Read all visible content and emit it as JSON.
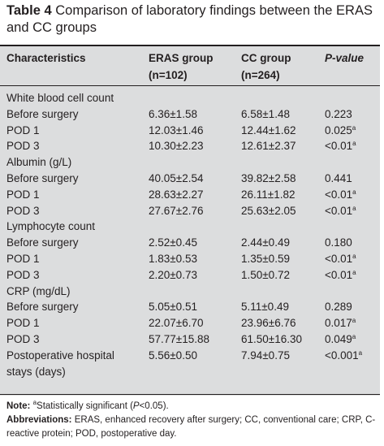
{
  "caption": {
    "label": "Table 4",
    "text": "Comparison of laboratory findings between the ERAS and CC groups"
  },
  "header": {
    "col1": "Characteristics",
    "col2_line1": "ERAS group",
    "col2_line2": "(n=102)",
    "col3_line1": "CC group",
    "col3_line2": "(n=264)",
    "col4": "P-value"
  },
  "rows": [
    {
      "label": "White blood cell count",
      "eras": "",
      "cc": "",
      "p": "",
      "sig": false
    },
    {
      "label": "Before surgery",
      "eras": "6.36±1.58",
      "cc": "6.58±1.48",
      "p": "0.223",
      "sig": false
    },
    {
      "label": "POD 1",
      "eras": "12.03±1.46",
      "cc": "12.44±1.62",
      "p": "0.025",
      "sig": true
    },
    {
      "label": "POD 3",
      "eras": "10.30±2.23",
      "cc": "12.61±2.37",
      "p": "<0.01",
      "sig": true
    },
    {
      "label": "Albumin (g/L)",
      "eras": "",
      "cc": "",
      "p": "",
      "sig": false
    },
    {
      "label": "Before surgery",
      "eras": "40.05±2.54",
      "cc": "39.82±2.58",
      "p": "0.441",
      "sig": false
    },
    {
      "label": "POD 1",
      "eras": "28.63±2.27",
      "cc": "26.11±1.82",
      "p": "<0.01",
      "sig": true
    },
    {
      "label": "POD 3",
      "eras": "27.67±2.76",
      "cc": "25.63±2.05",
      "p": "<0.01",
      "sig": true
    },
    {
      "label": "Lymphocyte count",
      "eras": "",
      "cc": "",
      "p": "",
      "sig": false
    },
    {
      "label": "Before surgery",
      "eras": "2.52±0.45",
      "cc": "2.44±0.49",
      "p": "0.180",
      "sig": false
    },
    {
      "label": "POD 1",
      "eras": "1.83±0.53",
      "cc": "1.35±0.59",
      "p": "<0.01",
      "sig": true
    },
    {
      "label": "POD 3",
      "eras": "2.20±0.73",
      "cc": "1.50±0.72",
      "p": "<0.01",
      "sig": true
    },
    {
      "label": "CRP (mg/dL)",
      "eras": "",
      "cc": "",
      "p": "",
      "sig": false
    },
    {
      "label": "Before surgery",
      "eras": "5.05±0.51",
      "cc": "5.11±0.49",
      "p": "0.289",
      "sig": false
    },
    {
      "label": "POD 1",
      "eras": "22.07±6.70",
      "cc": "23.96±6.76",
      "p": "0.017",
      "sig": true
    },
    {
      "label": "POD 3",
      "eras": "57.77±15.88",
      "cc": "61.50±16.30",
      "p": "0.049",
      "sig": true
    },
    {
      "label": "Postoperative hospital",
      "eras": "5.56±0.50",
      "cc": "7.94±0.75",
      "p": "<0.001",
      "sig": true
    },
    {
      "label": "stays (days)",
      "eras": "",
      "cc": "",
      "p": "",
      "sig": false
    }
  ],
  "sig_mark": "a",
  "notes": {
    "note_label": "Note:",
    "note_text_pre": "Statistically significant (",
    "note_text_p": "P",
    "note_text_post": "<0.05).",
    "abbr_label": "Abbreviations:",
    "abbr_text": "ERAS, enhanced recovery after surgery; CC, conventional care; CRP, C-reactive protein; POD, postoperative day."
  }
}
